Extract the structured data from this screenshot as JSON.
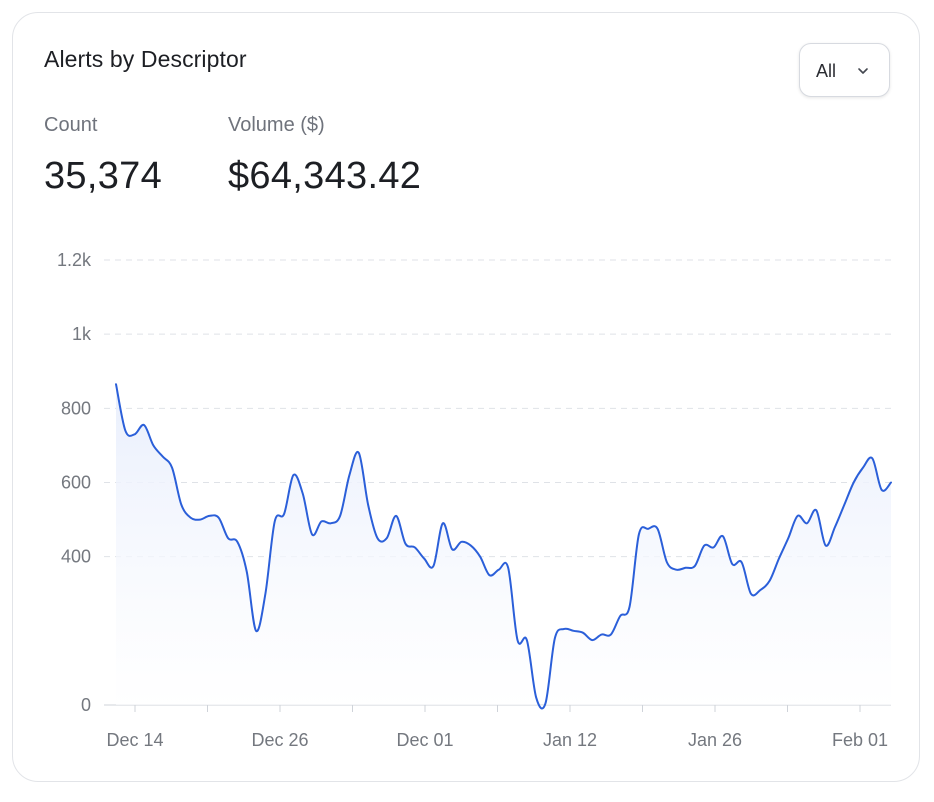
{
  "header": {
    "title": "Alerts by Descriptor",
    "filter_value": "All",
    "filter_icon": "chevron-down-icon"
  },
  "metrics": [
    {
      "label": "Count",
      "value": "35,374"
    },
    {
      "label": "Volume ($)",
      "value": "$64,343.42"
    }
  ],
  "colors": {
    "line": "#2b5fd9",
    "area_top": "#e8eefc",
    "grid": "#dfe2e7",
    "axis_text": "#74787f"
  },
  "chart_data": {
    "type": "area",
    "ylim": [
      0,
      1200
    ],
    "yticks": [
      0,
      400,
      600,
      800,
      1000,
      1200
    ],
    "ytick_labels": [
      "0",
      "400",
      "600",
      "800",
      "1k",
      "1.2k"
    ],
    "xtick_labels": [
      "Dec 14",
      "Dec 26",
      "Dec 01",
      "Jan 12",
      "Jan 26",
      "Feb 01"
    ],
    "grid": "horizontal dashed",
    "series": [
      {
        "values": [
          865,
          740,
          730,
          755,
          700,
          670,
          640,
          540,
          505,
          500,
          510,
          505,
          450,
          440,
          360,
          200,
          300,
          495,
          515,
          620,
          570,
          460,
          495,
          490,
          510,
          620,
          680,
          540,
          450,
          450,
          510,
          435,
          425,
          395,
          375,
          490,
          420,
          440,
          430,
          400,
          350,
          365,
          370,
          175,
          175,
          20,
          5,
          180,
          205,
          200,
          195,
          175,
          190,
          190,
          240,
          265,
          460,
          475,
          475,
          385,
          365,
          370,
          375,
          430,
          425,
          455,
          380,
          385,
          300,
          310,
          335,
          395,
          450,
          510,
          490,
          525,
          430,
          480,
          540,
          600,
          640,
          665,
          580,
          600
        ]
      }
    ]
  }
}
